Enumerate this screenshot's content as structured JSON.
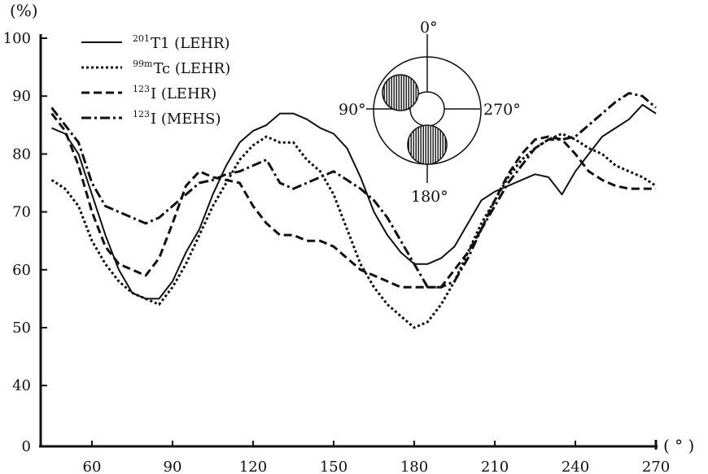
{
  "chart_data": {
    "type": "line",
    "title": "",
    "ylabel": "(%)",
    "xlabel": "( ° )",
    "xlim": [
      44,
      270
    ],
    "ylim": [
      0,
      100
    ],
    "x_ticks": [
      60,
      90,
      120,
      150,
      180,
      210,
      240,
      270
    ],
    "y_ticks": [
      0,
      40,
      50,
      60,
      70,
      80,
      90,
      100
    ],
    "legend_position": "top-left",
    "series": [
      {
        "name": "201Tl (LEHR)",
        "legend_sup": "201",
        "legend_main": "T1 (LEHR)",
        "style": "solid",
        "x": [
          45,
          50,
          55,
          60,
          65,
          70,
          75,
          80,
          85,
          90,
          95,
          100,
          105,
          110,
          115,
          120,
          125,
          130,
          135,
          140,
          145,
          150,
          155,
          160,
          165,
          170,
          175,
          180,
          185,
          190,
          195,
          200,
          205,
          210,
          215,
          220,
          225,
          230,
          235,
          240,
          245,
          250,
          255,
          260,
          265,
          270
        ],
        "values": [
          84.5,
          83.5,
          80,
          73,
          66,
          60,
          56,
          55,
          55,
          58,
          63,
          67,
          73,
          78,
          82,
          84,
          85,
          87,
          87,
          86,
          84.5,
          83.5,
          81,
          76,
          70,
          66,
          63,
          61,
          61,
          62,
          64,
          68,
          72,
          73.5,
          74.5,
          75.5,
          76.5,
          76,
          73,
          77,
          80,
          83,
          84.5,
          86,
          88.5,
          87
        ]
      },
      {
        "name": "99mTc (LEHR)",
        "legend_sup": "99m",
        "legend_main": "Tc (LEHR)",
        "style": "dotted",
        "x": [
          45,
          50,
          55,
          60,
          65,
          70,
          75,
          80,
          85,
          90,
          95,
          100,
          105,
          110,
          115,
          120,
          125,
          130,
          135,
          140,
          145,
          150,
          155,
          160,
          165,
          170,
          175,
          180,
          185,
          190,
          195,
          200,
          205,
          210,
          215,
          220,
          225,
          230,
          235,
          240,
          245,
          250,
          255,
          260,
          265,
          270
        ],
        "values": [
          75.5,
          74,
          71,
          65,
          61,
          58,
          56,
          55,
          54,
          57,
          61,
          66,
          71,
          75,
          79,
          81.5,
          83,
          82,
          82,
          79,
          77,
          73,
          67,
          61,
          57,
          54,
          52,
          50,
          51,
          54,
          58,
          63,
          68,
          72,
          76,
          79,
          81,
          82.5,
          83.5,
          82.5,
          81,
          80,
          78,
          77,
          76,
          74.5
        ]
      },
      {
        "name": "123I (LEHR)",
        "legend_sup": "123",
        "legend_main": "I (LEHR)",
        "style": "dashed",
        "x": [
          45,
          50,
          55,
          60,
          65,
          70,
          75,
          80,
          85,
          90,
          95,
          100,
          105,
          110,
          115,
          120,
          125,
          130,
          135,
          140,
          145,
          150,
          155,
          160,
          165,
          170,
          175,
          180,
          185,
          190,
          195,
          200,
          205,
          210,
          215,
          220,
          225,
          230,
          235,
          240,
          245,
          250,
          255,
          260,
          265,
          270
        ],
        "values": [
          87,
          84,
          78,
          70,
          64,
          61,
          60,
          59,
          62,
          68,
          74.5,
          77,
          76,
          75.5,
          75,
          71,
          68,
          66,
          66,
          65,
          65,
          64,
          62,
          60,
          59,
          58,
          57,
          57,
          57,
          57,
          60,
          63,
          67,
          72,
          76.5,
          80,
          82.5,
          83,
          82.5,
          80,
          77,
          75.5,
          74.5,
          74,
          74,
          74
        ]
      },
      {
        "name": "123I (MEHS)",
        "legend_sup": "123",
        "legend_main": "I (MEHS)",
        "style": "dashdot",
        "x": [
          45,
          50,
          55,
          60,
          65,
          70,
          75,
          80,
          85,
          90,
          95,
          100,
          105,
          110,
          115,
          120,
          125,
          130,
          135,
          140,
          145,
          150,
          155,
          160,
          165,
          170,
          175,
          180,
          185,
          190,
          195,
          200,
          205,
          210,
          215,
          220,
          225,
          230,
          235,
          240,
          245,
          250,
          255,
          260,
          265,
          270
        ],
        "values": [
          88,
          85,
          82,
          75,
          71,
          70,
          69,
          68,
          69,
          71,
          73,
          75,
          75.5,
          76.5,
          77,
          78,
          79,
          75,
          74,
          75,
          76,
          77,
          75.5,
          74,
          72,
          69,
          65,
          61,
          57,
          57,
          58,
          62,
          67,
          71,
          75,
          78,
          81,
          82.5,
          82.5,
          83,
          85,
          87,
          89,
          90.5,
          90,
          88
        ]
      }
    ],
    "inset": {
      "labels": {
        "top": "0°",
        "left": "90°",
        "right": "270°",
        "bottom": "180°"
      }
    }
  }
}
